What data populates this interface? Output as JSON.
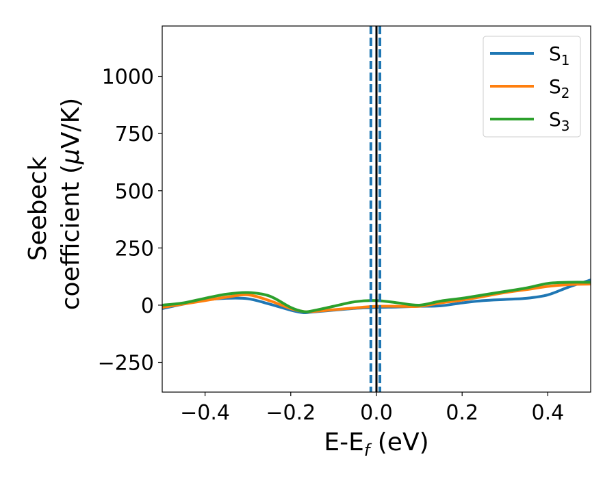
{
  "chart_data": {
    "type": "line",
    "xlabel_main": "E-E",
    "xlabel_sub": "f",
    "xlabel_unit": " (eV)",
    "ylabel_line1": "Seebeck",
    "ylabel_line2_pre": "coefficient  (",
    "ylabel_line2_mu": "μ",
    "ylabel_line2_post": "V/K)",
    "xlim": [
      -0.5,
      0.5
    ],
    "ylim": [
      -380,
      1220
    ],
    "xticks": [
      -0.4,
      -0.2,
      0.0,
      0.2,
      0.4
    ],
    "xtick_labels": [
      "−0.4",
      "−0.2",
      "0.0",
      "0.2",
      "0.4"
    ],
    "yticks": [
      -250,
      0,
      250,
      500,
      750,
      1000
    ],
    "ytick_labels": [
      "−250",
      "0",
      "250",
      "500",
      "750",
      "1000"
    ],
    "legend_position": "top-right",
    "series": [
      {
        "name": "S",
        "subscript": "1",
        "color": "#1f77b4",
        "x": [
          -0.5,
          -0.45,
          -0.4,
          -0.35,
          -0.3,
          -0.25,
          -0.2,
          -0.17,
          -0.15,
          -0.1,
          -0.05,
          0.0,
          0.05,
          0.1,
          0.15,
          0.2,
          0.25,
          0.3,
          0.35,
          0.4,
          0.45,
          0.5
        ],
        "y": [
          -15,
          5,
          22,
          30,
          28,
          5,
          -22,
          -33,
          -30,
          -22,
          -14,
          -10,
          -8,
          -5,
          -3,
          10,
          20,
          25,
          30,
          45,
          80,
          110
        ]
      },
      {
        "name": "S",
        "subscript": "2",
        "color": "#ff7f0e",
        "x": [
          -0.5,
          -0.45,
          -0.4,
          -0.35,
          -0.3,
          -0.25,
          -0.2,
          -0.17,
          -0.15,
          -0.1,
          -0.05,
          0.0,
          0.05,
          0.1,
          0.15,
          0.2,
          0.25,
          0.3,
          0.35,
          0.4,
          0.45,
          0.5
        ],
        "y": [
          -10,
          5,
          20,
          35,
          45,
          20,
          -15,
          -28,
          -28,
          -20,
          -12,
          -5,
          -5,
          -5,
          10,
          22,
          38,
          55,
          68,
          82,
          90,
          92
        ]
      },
      {
        "name": "S",
        "subscript": "3",
        "color": "#2ca02c",
        "x": [
          -0.5,
          -0.45,
          -0.4,
          -0.35,
          -0.3,
          -0.25,
          -0.2,
          -0.17,
          -0.15,
          -0.1,
          -0.05,
          0.0,
          0.05,
          0.1,
          0.15,
          0.2,
          0.25,
          0.3,
          0.35,
          0.4,
          0.45,
          0.5
        ],
        "y": [
          0,
          10,
          30,
          48,
          55,
          40,
          -10,
          -28,
          -25,
          -5,
          15,
          20,
          10,
          0,
          18,
          30,
          45,
          60,
          75,
          95,
          100,
          100
        ]
      }
    ],
    "vertical_lines": [
      {
        "x": -0.013,
        "color": "#1f77b4",
        "style": "dashed"
      },
      {
        "x": 0.0,
        "color": "#000000",
        "style": "solid"
      },
      {
        "x": 0.008,
        "color": "#1f77b4",
        "style": "dashed"
      }
    ]
  }
}
